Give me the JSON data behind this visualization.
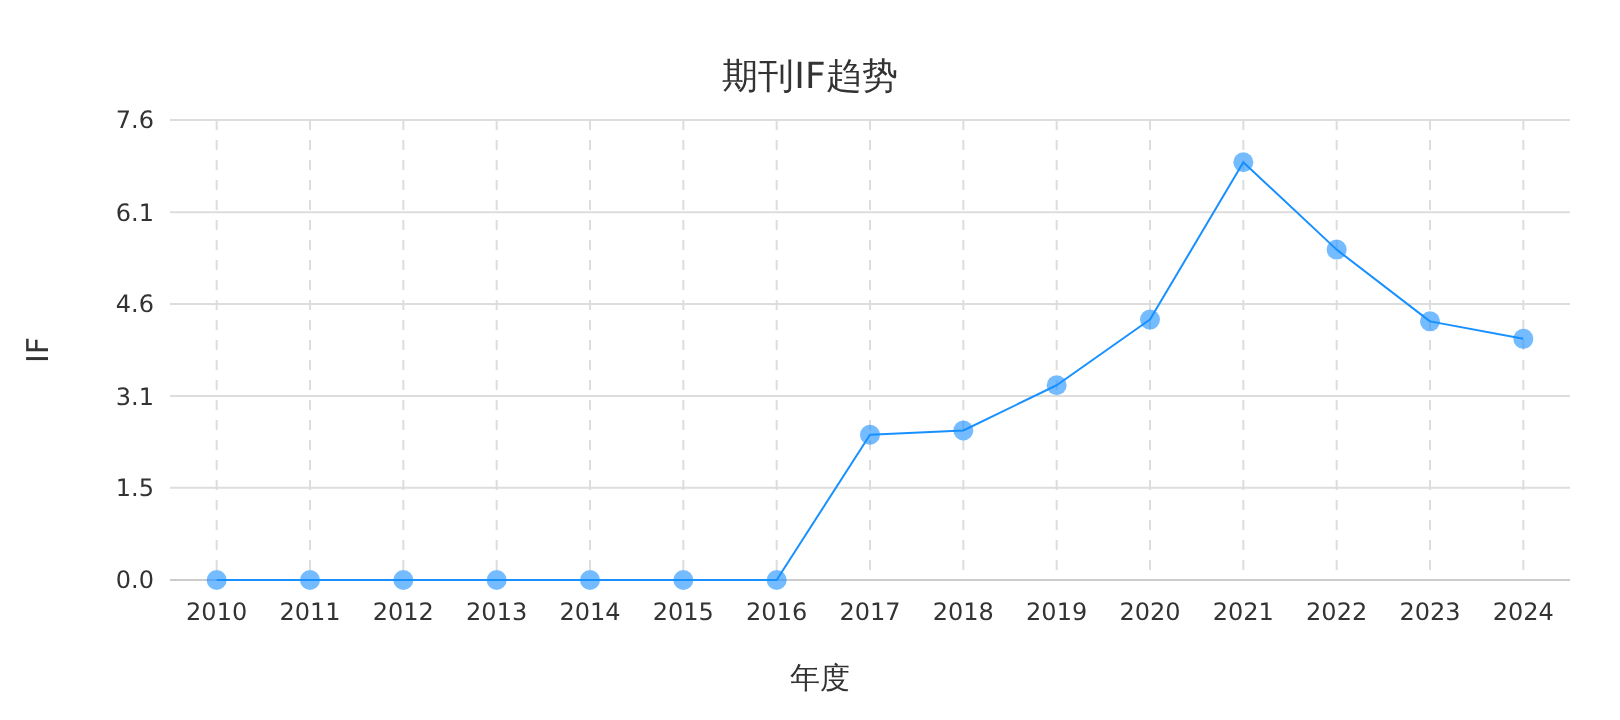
{
  "chart_data": {
    "type": "line",
    "title": "期刊IF趋势",
    "xlabel": "年度",
    "ylabel": "IF",
    "categories": [
      "2010",
      "2011",
      "2012",
      "2013",
      "2014",
      "2015",
      "2016",
      "2017",
      "2018",
      "2019",
      "2020",
      "2021",
      "2022",
      "2023",
      "2024"
    ],
    "series": [
      {
        "color": "#1890ff",
        "values": [
          0,
          0,
          0,
          0,
          0,
          0,
          0,
          2.41,
          2.48,
          3.23,
          4.32,
          6.93,
          5.48,
          4.29,
          4.0
        ]
      }
    ],
    "ylim": [
      0,
      7.63
    ],
    "yticks": [
      {
        "value": 0,
        "label": "0.0"
      },
      {
        "value": 1.53,
        "label": "1.5"
      },
      {
        "value": 3.05,
        "label": "3.1"
      },
      {
        "value": 4.58,
        "label": "4.6"
      },
      {
        "value": 6.1,
        "label": "6.1"
      },
      {
        "value": 7.63,
        "label": "7.6"
      }
    ],
    "grid": true,
    "marker": "circle",
    "line_style": "solid"
  }
}
